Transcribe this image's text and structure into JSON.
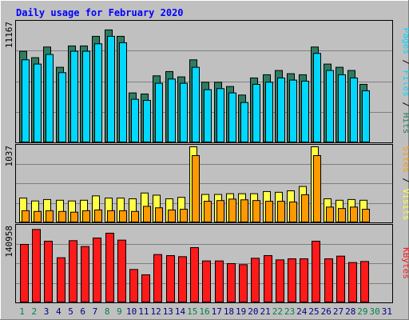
{
  "colors": {
    "background": "#c0c0c0",
    "frame_light": "#ffffff",
    "frame_dark": "#808080",
    "plot_border": "#000000",
    "grid": "#808080",
    "title": "#0000ff",
    "hits_back": "#2e7d62",
    "files_front": "#00d8ff",
    "visits_back": "#ffff44",
    "sites_front": "#ff9900",
    "kbytes": "#ff1a1a",
    "weekend_label": "#00804a",
    "weekday_label": "#000080",
    "sep": "#000000"
  },
  "chart_data": {
    "type": "bar",
    "title": "Daily usage for February 2020",
    "days": [
      "1",
      "2",
      "3",
      "4",
      "5",
      "6",
      "7",
      "8",
      "9",
      "10",
      "11",
      "12",
      "13",
      "14",
      "15",
      "16",
      "17",
      "18",
      "19",
      "20",
      "21",
      "22",
      "23",
      "24",
      "25",
      "26",
      "27",
      "28",
      "29",
      "30",
      "31"
    ],
    "weekend_days": [
      1,
      2,
      8,
      9,
      15,
      16,
      22,
      23,
      29,
      30
    ],
    "data_days": 29,
    "panels": {
      "hits_files": {
        "ymax_label": "11167",
        "ymax": 11167,
        "side_labels": [
          "Pages",
          "Files",
          "Hits"
        ],
        "series": [
          {
            "name": "Hits",
            "values": [
              8500,
              7900,
              8900,
              7000,
              9000,
              9000,
              9900,
              10500,
              9900,
              4600,
              4500,
              6200,
              6600,
              6100,
              7700,
              5600,
              5600,
              5200,
              4400,
              6000,
              6300,
              6700,
              6400,
              6300,
              8900,
              7300,
              7000,
              6700,
              5400
            ]
          },
          {
            "name": "Files",
            "values": [
              8000,
              7600,
              8500,
              6800,
              8800,
              8800,
              9500,
              10200,
              9600,
              4300,
              4200,
              5800,
              6200,
              5800,
              7300,
              5200,
              5300,
              4900,
              4000,
              5700,
              5900,
              6300,
              6100,
              6000,
              8600,
              7000,
              6600,
              6300,
              5100
            ]
          }
        ]
      },
      "visits_sites": {
        "ymax_label": "1037",
        "ymax": 1037,
        "side_labels": [
          "Sites",
          "Visits"
        ],
        "series": [
          {
            "name": "Visits",
            "values": [
              330,
              290,
              310,
              300,
              290,
              300,
              360,
              330,
              330,
              320,
              400,
              370,
              320,
              340,
              1037,
              380,
              380,
              390,
              390,
              390,
              420,
              410,
              430,
              490,
              1037,
              320,
              300,
              310,
              300
            ]
          },
          {
            "name": "Sites",
            "values": [
              200,
              190,
              200,
              190,
              180,
              200,
              210,
              200,
              200,
              190,
              260,
              240,
              210,
              220,
              960,
              330,
              340,
              360,
              350,
              340,
              330,
              330,
              320,
              420,
              960,
              250,
              230,
              250,
              220
            ]
          }
        ]
      },
      "kbytes": {
        "ymax_label": "140958",
        "ymax": 140958,
        "side_labels": [
          "KBytes"
        ],
        "series": [
          {
            "name": "KBytes",
            "values": [
              108000,
              136000,
              114000,
              83000,
              115000,
              104000,
              120000,
              129000,
              116000,
              61000,
              51000,
              89000,
              87000,
              85000,
              102000,
              77000,
              77000,
              72000,
              70000,
              82000,
              87000,
              79000,
              81000,
              81000,
              114000,
              81000,
              86000,
              74000,
              76000
            ]
          }
        ]
      }
    }
  }
}
